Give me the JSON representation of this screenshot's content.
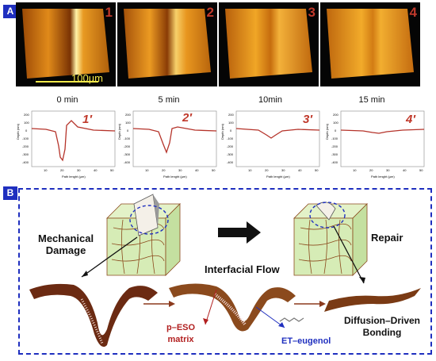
{
  "panel_a": {
    "badge": "A",
    "images": [
      {
        "number": "1",
        "scale_label": "100µm"
      },
      {
        "number": "2"
      },
      {
        "number": "3"
      },
      {
        "number": "4"
      }
    ],
    "times": [
      "0 min",
      "5 min",
      "10min",
      "15 min"
    ],
    "profiles": [
      {
        "label": "1′",
        "ylabel": "Depth (nm)",
        "xlabel": "Path lenght (µm)",
        "yticks": [
          "200",
          "100",
          "0",
          "-100",
          "-200",
          "-300",
          "-400"
        ],
        "xticks": [
          "10",
          "20",
          "30",
          "40",
          "50"
        ]
      },
      {
        "label": "2′",
        "ylabel": "Depth (nm)",
        "xlabel": "Path lenght (µm)",
        "yticks": [
          "200",
          "100",
          "0",
          "-100",
          "-200",
          "-300",
          "-400"
        ],
        "xticks": [
          "10",
          "20",
          "30",
          "40",
          "50"
        ]
      },
      {
        "label": "3′",
        "ylabel": "Depth (nm)",
        "xlabel": "Path lenght (µm)",
        "yticks": [
          "200",
          "100",
          "0",
          "-100",
          "-200",
          "-300",
          "-400"
        ],
        "xticks": [
          "10",
          "20",
          "30",
          "40",
          "50"
        ]
      },
      {
        "label": "4′",
        "ylabel": "Depth (nm)",
        "xlabel": "Path lenght (µm)",
        "yticks": [
          "200",
          "100",
          "0",
          "-100",
          "-200",
          "-300",
          "-400"
        ],
        "xticks": [
          "10",
          "20",
          "30",
          "40",
          "50"
        ]
      }
    ],
    "colors": {
      "afm_bright": "#f2a21c",
      "afm_dark": "#b35a08",
      "profile_line": "#b5332a"
    }
  },
  "panel_b": {
    "badge": "B",
    "labels": {
      "damage_line1": "Mechanical",
      "damage_line2": "Damage",
      "interfacial": "Interfacial Flow",
      "repair": "Repair",
      "matrix_line1": "p–ESO",
      "matrix_line2": "matrix",
      "eugenol": "ET–eugenol",
      "bonding_line1": "Diffusion–Driven",
      "bonding_line2": "Bonding"
    },
    "colors": {
      "border": "#1f2fbf",
      "cube_face": "#d6ecb6",
      "crack_line": "#8b4a1d",
      "surface": "#6b2a12"
    }
  }
}
